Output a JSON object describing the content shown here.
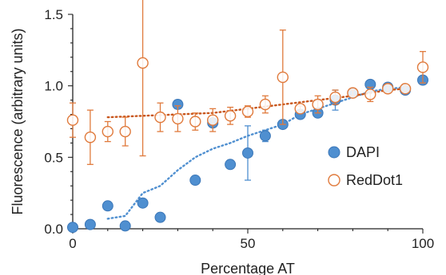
{
  "chart_data": {
    "type": "scatter",
    "xlabel": "Percentage AT",
    "ylabel": "Fluorescence (arbitrary units)",
    "xlim": [
      0,
      100
    ],
    "ylim": [
      0,
      1.5
    ],
    "x_ticks": [
      "0",
      "50",
      "100"
    ],
    "y_ticks": [
      "0.0",
      "0.5",
      "1.0",
      "1.5"
    ],
    "grid": false,
    "legend_position": "right",
    "series": [
      {
        "name": "DAPI",
        "marker": "filled-circle",
        "color": "#4f8fd0",
        "x": [
          0,
          5,
          10,
          15,
          20,
          25,
          30,
          35,
          40,
          45,
          50,
          55,
          60,
          65,
          70,
          75,
          80,
          85,
          90,
          95,
          100
        ],
        "y": [
          0.01,
          0.03,
          0.16,
          0.02,
          0.18,
          0.08,
          0.87,
          0.34,
          0.74,
          0.45,
          0.53,
          0.65,
          0.73,
          0.8,
          0.81,
          0.9,
          0.95,
          1.01,
          0.99,
          0.97,
          1.04
        ],
        "err": [
          0,
          0,
          0,
          0,
          0,
          0,
          0.03,
          0.02,
          0.02,
          0,
          0.19,
          0.04,
          0,
          0.02,
          0.02,
          0.07,
          0.02,
          0,
          0,
          0.02,
          0
        ]
      },
      {
        "name": "RedDot1",
        "marker": "open-circle",
        "color": "#e07a3c",
        "x": [
          0,
          5,
          10,
          15,
          20,
          25,
          30,
          35,
          40,
          45,
          50,
          55,
          60,
          65,
          70,
          75,
          80,
          85,
          90,
          95,
          100
        ],
        "y": [
          0.76,
          0.64,
          0.68,
          0.68,
          1.16,
          0.78,
          0.77,
          0.75,
          0.76,
          0.79,
          0.82,
          0.87,
          1.06,
          0.84,
          0.87,
          0.92,
          0.95,
          0.94,
          0.98,
          0.98,
          1.13
        ],
        "err": [
          0.12,
          0.19,
          0.07,
          0.1,
          0.65,
          0.1,
          0.09,
          0.06,
          0.08,
          0.06,
          0.04,
          0.06,
          0.33,
          0.02,
          0.06,
          0.05,
          0.02,
          0.05,
          0.03,
          0.02,
          0.11
        ]
      }
    ],
    "trendlines": [
      {
        "series": "DAPI",
        "style": "dotted",
        "color": "#4f8fd0",
        "x": [
          10,
          15,
          20,
          25,
          30,
          35,
          40,
          45,
          50,
          55,
          60,
          65,
          70,
          75,
          80,
          85,
          90,
          95
        ],
        "y": [
          0.07,
          0.09,
          0.25,
          0.3,
          0.41,
          0.5,
          0.56,
          0.6,
          0.65,
          0.69,
          0.73,
          0.8,
          0.84,
          0.88,
          0.92,
          0.96,
          0.98,
          0.99
        ]
      },
      {
        "series": "RedDot1",
        "style": "dotted",
        "color": "#c8561c",
        "x": [
          10,
          20,
          30,
          40,
          50,
          60,
          70,
          80,
          90,
          95
        ],
        "y": [
          0.78,
          0.79,
          0.8,
          0.81,
          0.84,
          0.87,
          0.9,
          0.93,
          0.97,
          0.98
        ]
      }
    ]
  }
}
